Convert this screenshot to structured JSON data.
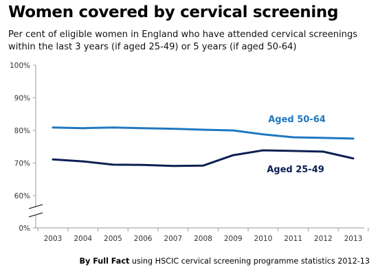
{
  "title": "Women covered by cervical screening",
  "subtitle": "Per cent of eligible women in England who have attended cervical screenings within the last 3 years (if aged 25-49) or 5 years (if aged 50-64)",
  "source_bold": "By Full Fact",
  "source_rest": " using HSCIC cervical screening programme statistics 2012-13",
  "chart_data": {
    "type": "line",
    "x": [
      "2003",
      "2004",
      "2005",
      "2006",
      "2007",
      "2008",
      "2009",
      "2010",
      "2011",
      "2012",
      "2013"
    ],
    "y_ticks": [
      "100%",
      "90%",
      "80%",
      "70%",
      "60%",
      "0%"
    ],
    "ylim": [
      60,
      100
    ],
    "axis_break": true,
    "grid": false,
    "series": [
      {
        "name": "Aged 50-64",
        "color": "#1f78c1",
        "values": [
          80.9,
          80.7,
          80.9,
          80.7,
          80.5,
          80.2,
          80.0,
          78.8,
          77.9,
          77.7,
          77.5
        ]
      },
      {
        "name": "Aged 25-49",
        "color": "#0b1f52",
        "values": [
          71.1,
          70.5,
          69.5,
          69.4,
          69.1,
          69.2,
          72.4,
          73.9,
          73.7,
          73.5,
          71.4
        ]
      }
    ]
  }
}
